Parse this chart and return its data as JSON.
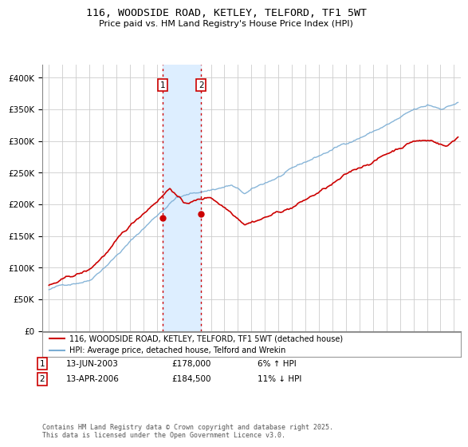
{
  "title": "116, WOODSIDE ROAD, KETLEY, TELFORD, TF1 5WT",
  "subtitle": "Price paid vs. HM Land Registry's House Price Index (HPI)",
  "legend_line1": "116, WOODSIDE ROAD, KETLEY, TELFORD, TF1 5WT (detached house)",
  "legend_line2": "HPI: Average price, detached house, Telford and Wrekin",
  "transaction1_date": "13-JUN-2003",
  "transaction1_price": 178000,
  "transaction1_price_str": "£178,000",
  "transaction1_pct": "6% ↑ HPI",
  "transaction2_date": "13-APR-2006",
  "transaction2_price": 184500,
  "transaction2_price_str": "£184,500",
  "transaction2_pct": "11% ↓ HPI",
  "footer": "Contains HM Land Registry data © Crown copyright and database right 2025.\nThis data is licensed under the Open Government Licence v3.0.",
  "hpi_color": "#7aadd4",
  "price_color": "#cc0000",
  "vband_color": "#ddeeff",
  "marker1_x": 2003.44,
  "marker2_x": 2006.28,
  "ylim_min": 0,
  "ylim_max": 420000,
  "xlim_min": 1994.5,
  "xlim_max": 2025.5,
  "background_color": "#ffffff",
  "grid_color": "#cccccc"
}
